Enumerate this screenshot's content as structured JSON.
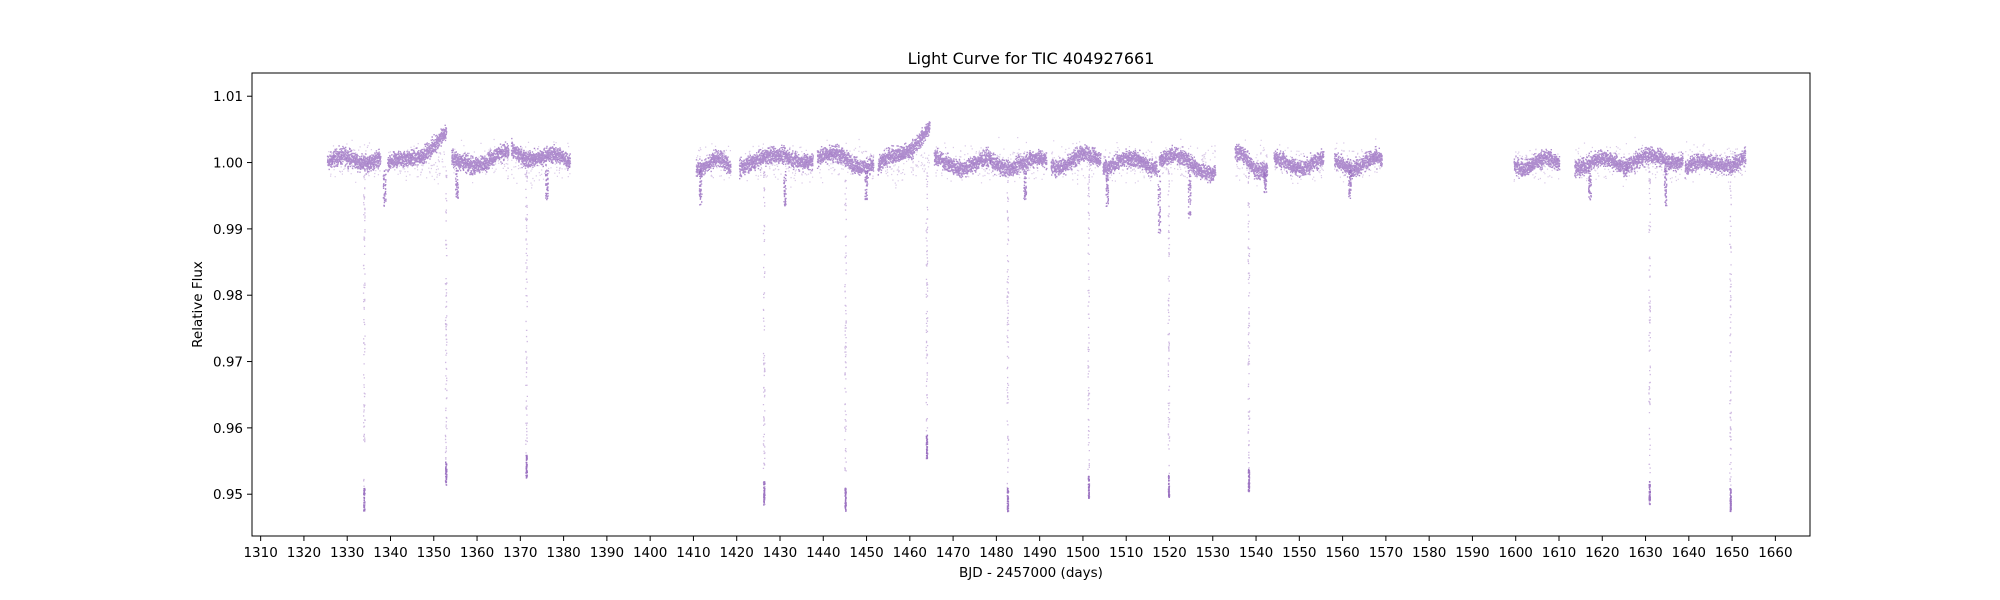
{
  "chart_data": {
    "type": "scatter",
    "title": "Light Curve for TIC 404927661",
    "xlabel": "BJD - 2457000 (days)",
    "ylabel": "Relative Flux",
    "xlim": [
      1308,
      1668
    ],
    "ylim": [
      0.9437,
      1.0135
    ],
    "xticks": [
      1310,
      1320,
      1330,
      1340,
      1350,
      1360,
      1370,
      1380,
      1390,
      1400,
      1410,
      1420,
      1430,
      1440,
      1450,
      1460,
      1470,
      1480,
      1490,
      1500,
      1510,
      1520,
      1530,
      1540,
      1550,
      1560,
      1570,
      1580,
      1590,
      1600,
      1610,
      1620,
      1630,
      1640,
      1650,
      1660
    ],
    "yticks": [
      0.95,
      0.96,
      0.97,
      0.98,
      0.99,
      1.0,
      1.01
    ],
    "ytick_labels": [
      "0.95",
      "0.96",
      "0.97",
      "0.98",
      "0.99",
      "1.00",
      "1.01"
    ],
    "grid": false,
    "color": "#9467bd",
    "segments": [
      {
        "x": [
          1325.3,
          1337.6
        ],
        "y": [
          1.0,
          1.001
        ]
      },
      {
        "x": [
          1339.2,
          1352.8
        ],
        "y": [
          0.999,
          1.004
        ]
      },
      {
        "x": [
          1354.0,
          1367.2
        ],
        "y": [
          1.0,
          1.001
        ]
      },
      {
        "x": [
          1367.8,
          1381.4
        ],
        "y": [
          1.002,
          1.0
        ]
      },
      {
        "x": [
          1410.5,
          1418.5
        ],
        "y": [
          1.0,
          1.0
        ]
      },
      {
        "x": [
          1420.5,
          1437.5
        ],
        "y": [
          1.0,
          1.001
        ]
      },
      {
        "x": [
          1438.5,
          1451.5
        ],
        "y": [
          1.001,
          1.0
        ]
      },
      {
        "x": [
          1452.5,
          1464.5
        ],
        "y": [
          0.999,
          1.005
        ]
      },
      {
        "x": [
          1465.5,
          1478.5
        ],
        "y": [
          1.0,
          1.0
        ]
      },
      {
        "x": [
          1478.5,
          1491.5
        ],
        "y": [
          1.0,
          1.0
        ]
      },
      {
        "x": [
          1492.5,
          1504.0
        ],
        "y": [
          1.0,
          1.001
        ]
      },
      {
        "x": [
          1504.5,
          1517.0
        ],
        "y": [
          1.0,
          1.0
        ]
      },
      {
        "x": [
          1517.5,
          1530.5
        ],
        "y": [
          1.001,
          0.999
        ]
      },
      {
        "x": [
          1535.0,
          1542.5
        ],
        "y": [
          1.001,
          0.999
        ]
      },
      {
        "x": [
          1544.0,
          1555.5
        ],
        "y": [
          1.0,
          1.0
        ]
      },
      {
        "x": [
          1558.0,
          1569.0
        ],
        "y": [
          1.0,
          1.0
        ]
      },
      {
        "x": [
          1599.5,
          1610.0
        ],
        "y": [
          1.0,
          1.0
        ]
      },
      {
        "x": [
          1613.5,
          1625.5
        ],
        "y": [
          1.0,
          1.0
        ]
      },
      {
        "x": [
          1625.5,
          1638.5
        ],
        "y": [
          1.0,
          1.001
        ]
      },
      {
        "x": [
          1639.0,
          1653.0
        ],
        "y": [
          0.999,
          1.001
        ]
      }
    ],
    "transits": [
      {
        "x": 1333.8,
        "min_flux": 0.9475
      },
      {
        "x": 1352.7,
        "min_flux": 0.9515
      },
      {
        "x": 1371.3,
        "min_flux": 0.9525
      },
      {
        "x": 1426.2,
        "min_flux": 0.9485
      },
      {
        "x": 1445.0,
        "min_flux": 0.9475
      },
      {
        "x": 1463.8,
        "min_flux": 0.9555
      },
      {
        "x": 1482.5,
        "min_flux": 0.9475
      },
      {
        "x": 1501.2,
        "min_flux": 0.9495
      },
      {
        "x": 1519.7,
        "min_flux": 0.9495
      },
      {
        "x": 1538.2,
        "min_flux": 0.9505
      },
      {
        "x": 1630.8,
        "min_flux": 0.9485
      },
      {
        "x": 1649.5,
        "min_flux": 0.9475
      }
    ],
    "shallow_dips": [
      {
        "x": 1338.5,
        "min_flux": 0.9935
      },
      {
        "x": 1355.2,
        "min_flux": 0.9945
      },
      {
        "x": 1376.0,
        "min_flux": 0.9945
      },
      {
        "x": 1411.5,
        "min_flux": 0.9935
      },
      {
        "x": 1431.0,
        "min_flux": 0.9935
      },
      {
        "x": 1449.8,
        "min_flux": 0.9945
      },
      {
        "x": 1486.5,
        "min_flux": 0.9945
      },
      {
        "x": 1505.5,
        "min_flux": 0.9935
      },
      {
        "x": 1517.5,
        "min_flux": 0.9895
      },
      {
        "x": 1524.5,
        "min_flux": 0.9915
      },
      {
        "x": 1542.0,
        "min_flux": 0.9955
      },
      {
        "x": 1561.5,
        "min_flux": 0.9945
      },
      {
        "x": 1617.0,
        "min_flux": 0.9945
      },
      {
        "x": 1634.5,
        "min_flux": 0.9935
      }
    ]
  }
}
